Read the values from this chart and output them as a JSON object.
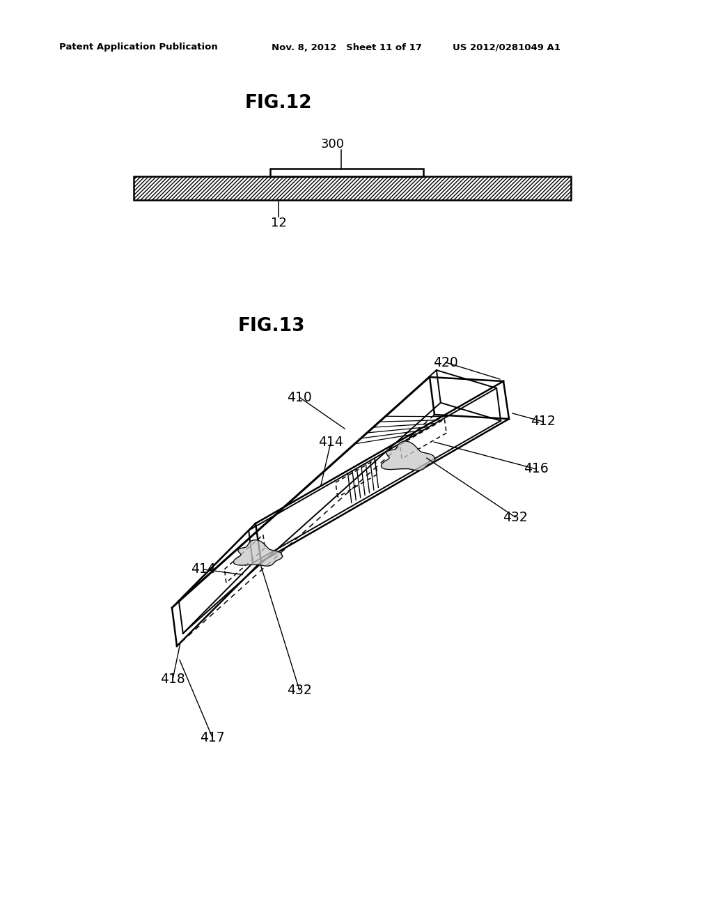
{
  "background_color": "#ffffff",
  "header_left": "Patent Application Publication",
  "header_center": "Nov. 8, 2012   Sheet 11 of 17",
  "header_right": "US 2012/0281049 A1",
  "fig12_title": "FIG.12",
  "fig13_title": "FIG.13",
  "label_300": "300",
  "label_12": "12",
  "label_410": "410",
  "label_412": "412",
  "label_414a": "414",
  "label_414b": "414",
  "label_416": "416",
  "label_417": "417",
  "label_418": "418",
  "label_420": "420",
  "label_432a": "432",
  "label_432b": "432"
}
